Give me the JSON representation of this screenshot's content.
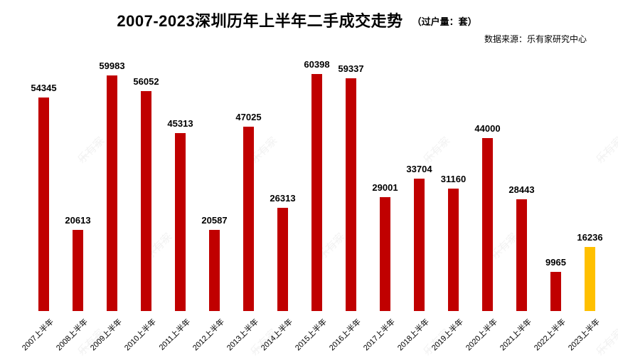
{
  "header": {
    "title": "2007-2023深圳历年上半年二手成交走势",
    "title_suffix": "（过户量：套）",
    "source": "数据来源：乐有家研究中心"
  },
  "watermark_text": "乐有家",
  "colors": {
    "bar": "#c00000",
    "highlight_bar": "#ffc000",
    "text": "#000000"
  },
  "chart_data": {
    "type": "bar",
    "title": "2007-2023深圳历年上半年二手成交走势（过户量：套）",
    "categories": [
      "2007上半年",
      "2008上半年",
      "2009上半年",
      "2010上半年",
      "2011上半年",
      "2012上半年",
      "2013上半年",
      "2014上半年",
      "2015上半年",
      "2016上半年",
      "2017上半年",
      "2018上半年",
      "2019上半年",
      "2020上半年",
      "2021上半年",
      "2022上半年",
      "2023上半年"
    ],
    "values": [
      54345,
      20613,
      59983,
      56052,
      45313,
      20587,
      47025,
      26313,
      60398,
      59337,
      29001,
      33704,
      31160,
      44000,
      28443,
      9965,
      16236
    ],
    "highlight_index": 16,
    "data_labels": true,
    "xlabel": "",
    "ylabel": "",
    "ylim": [
      0,
      63000
    ],
    "grid": false,
    "legend": false,
    "bar_color": "#c00000",
    "highlight_color": "#ffc000"
  }
}
